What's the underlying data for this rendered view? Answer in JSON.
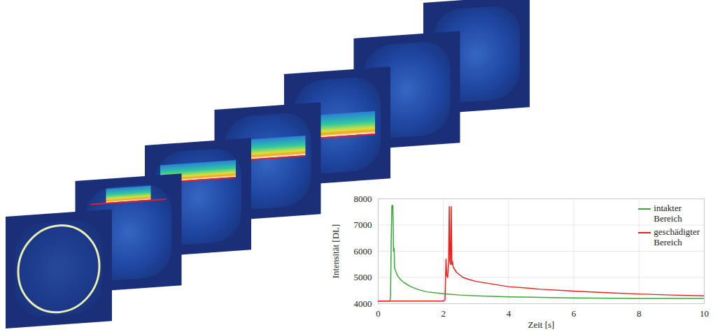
{
  "chart_data": {
    "type": "line",
    "xlabel": "Zeit [s]",
    "ylabel": "Intensität [DL]",
    "xlim": [
      0,
      10
    ],
    "xticks": [
      0,
      2,
      4,
      6,
      8,
      10
    ],
    "ylim": [
      4000,
      8000
    ],
    "yticks": [
      4000,
      5000,
      6000,
      7000,
      8000
    ],
    "grid": true,
    "legend": "top-right",
    "series": [
      {
        "name": "intakter Bereich",
        "color": "#3aa63a",
        "x": [
          0,
          0.2,
          0.36,
          0.38,
          0.4,
          0.42,
          0.45,
          0.47,
          0.49,
          0.5,
          0.52,
          0.55,
          0.6,
          0.7,
          0.8,
          1.0,
          1.25,
          1.5,
          2.0,
          2.5,
          3.0,
          4.0,
          5.0,
          6.0,
          8.0,
          10.0
        ],
        "values": [
          4100,
          4100,
          4100,
          4300,
          6500,
          7750,
          7750,
          6000,
          6100,
          5400,
          5300,
          5200,
          5050,
          4900,
          4800,
          4650,
          4530,
          4450,
          4380,
          4330,
          4300,
          4260,
          4240,
          4220,
          4200,
          4200
        ]
      },
      {
        "name": "geschädigter Bereich",
        "color": "#e8201c",
        "x": [
          0,
          1.0,
          2.0,
          2.05,
          2.08,
          2.1,
          2.13,
          2.16,
          2.18,
          2.2,
          2.22,
          2.24,
          2.26,
          2.28,
          2.3,
          2.35,
          2.4,
          2.5,
          2.6,
          2.8,
          3.0,
          3.5,
          4.0,
          5.0,
          6.0,
          7.0,
          8.0,
          9.0,
          10.0
        ],
        "values": [
          4100,
          4100,
          4100,
          4150,
          5700,
          5100,
          5000,
          5600,
          7700,
          5600,
          5500,
          7700,
          5500,
          5600,
          5400,
          5300,
          5200,
          5100,
          5000,
          4920,
          4850,
          4750,
          4650,
          4550,
          4480,
          4420,
          4370,
          4330,
          4300
        ]
      }
    ]
  }
}
